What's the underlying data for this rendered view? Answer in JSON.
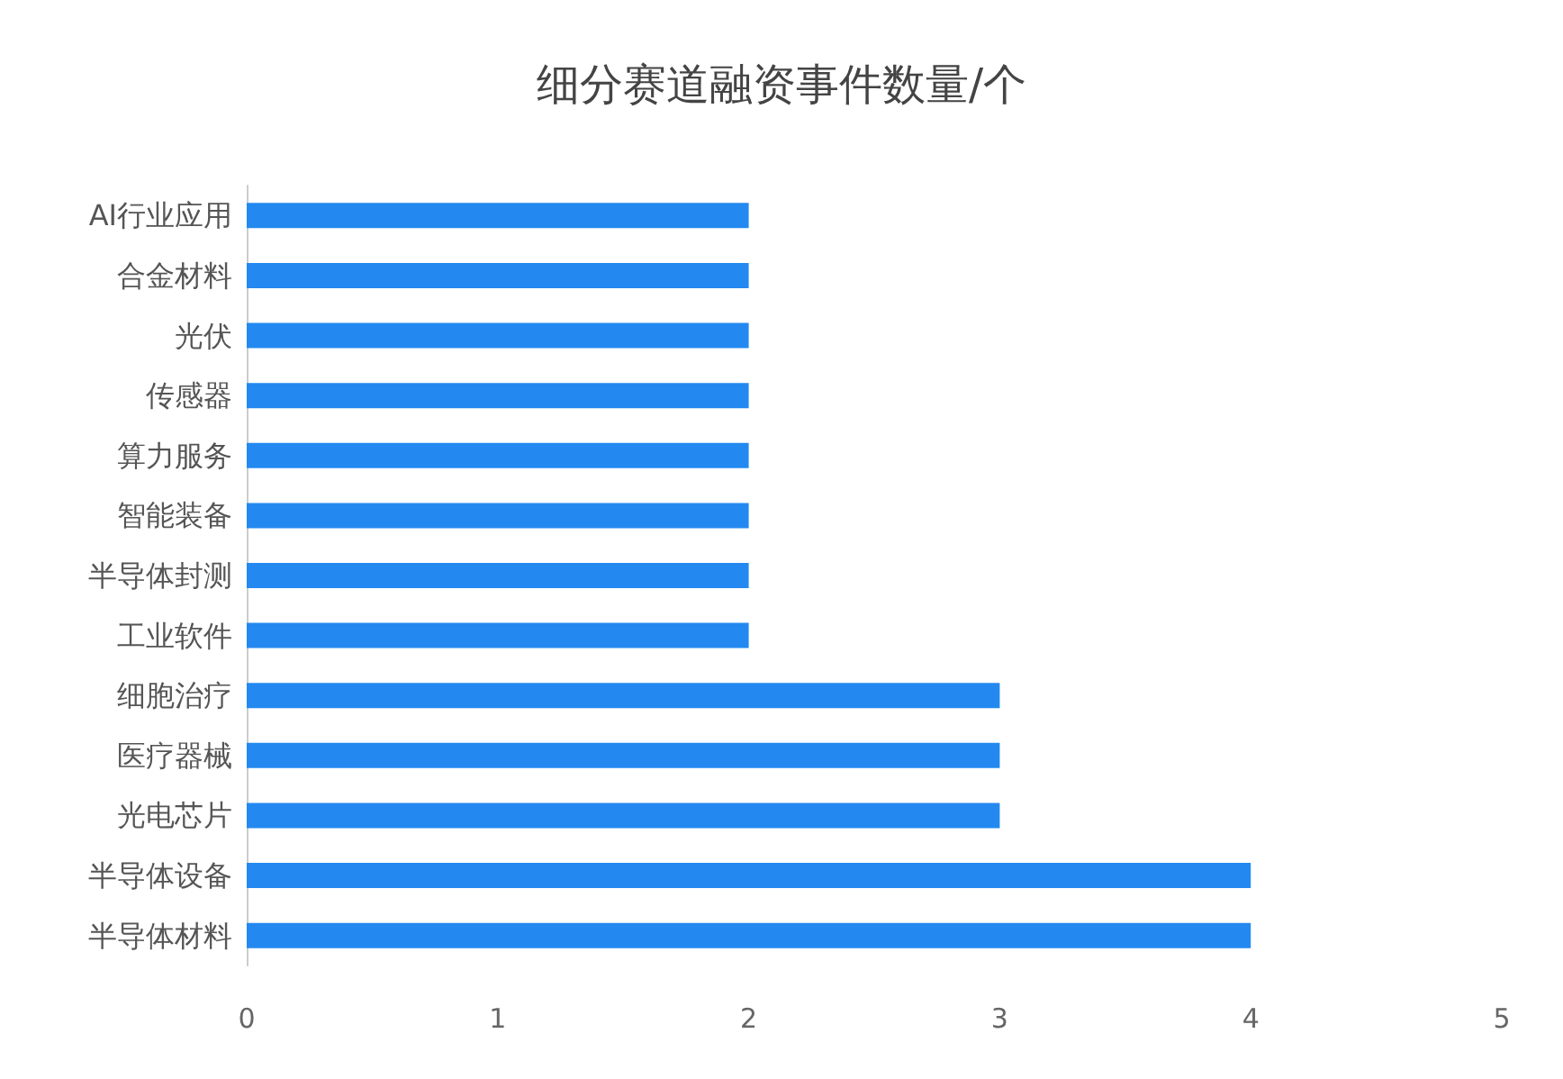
{
  "chart_data": {
    "type": "bar",
    "orientation": "horizontal",
    "title": "细分赛道融资事件数量/个",
    "categories": [
      "AI行业应用",
      "合金材料",
      "光伏",
      "传感器",
      "算力服务",
      "智能装备",
      "半导体封测",
      "工业软件",
      "细胞治疗",
      "医疗器械",
      "光电芯片",
      "半导体设备",
      "半导体材料"
    ],
    "values": [
      2,
      2,
      2,
      2,
      2,
      2,
      2,
      2,
      3,
      3,
      3,
      4,
      4
    ],
    "color": "#2389f0",
    "xlim": [
      0,
      5
    ],
    "xticks": [
      0,
      1,
      2,
      3,
      4,
      5
    ],
    "grid": false
  }
}
